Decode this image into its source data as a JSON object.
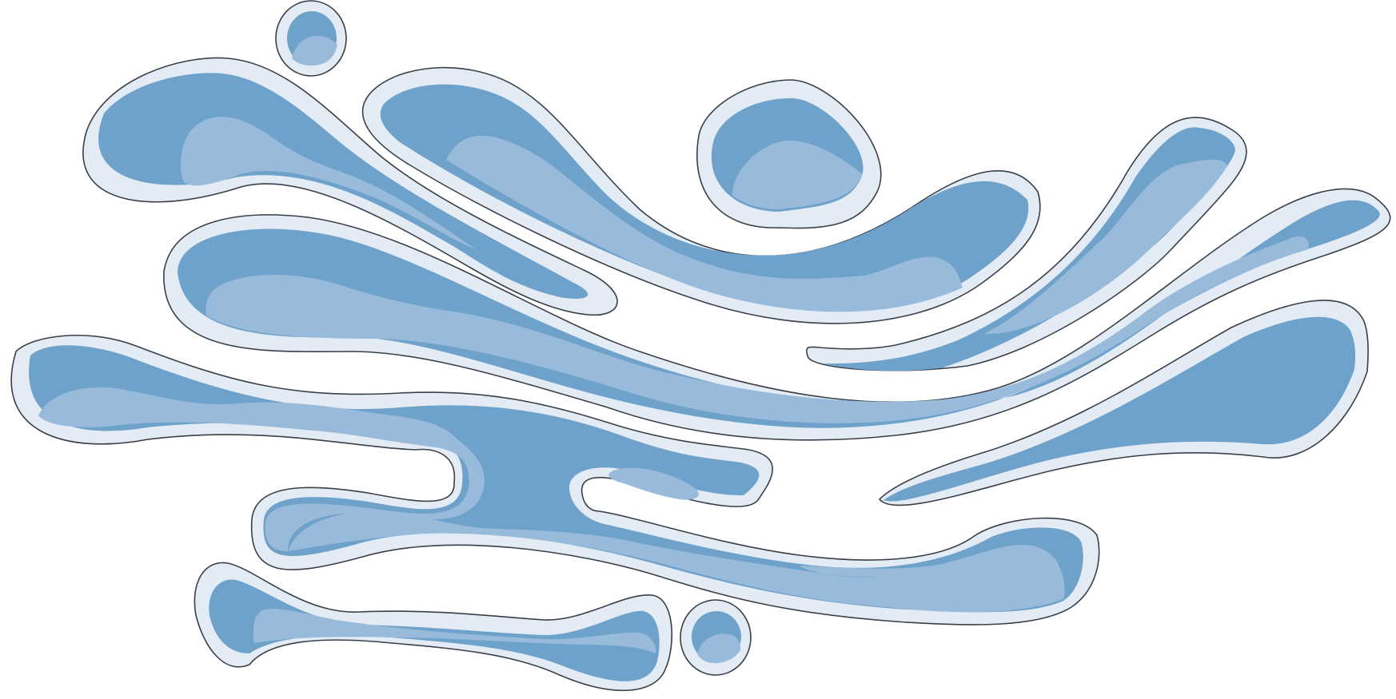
{
  "illustration": {
    "subject": "water-splash",
    "colors": {
      "background": "#ffffff",
      "outline": "#3a3f48",
      "rim": "#e3ecf5",
      "water": "#6fa2cb",
      "highlight": "#99bbdb"
    }
  }
}
